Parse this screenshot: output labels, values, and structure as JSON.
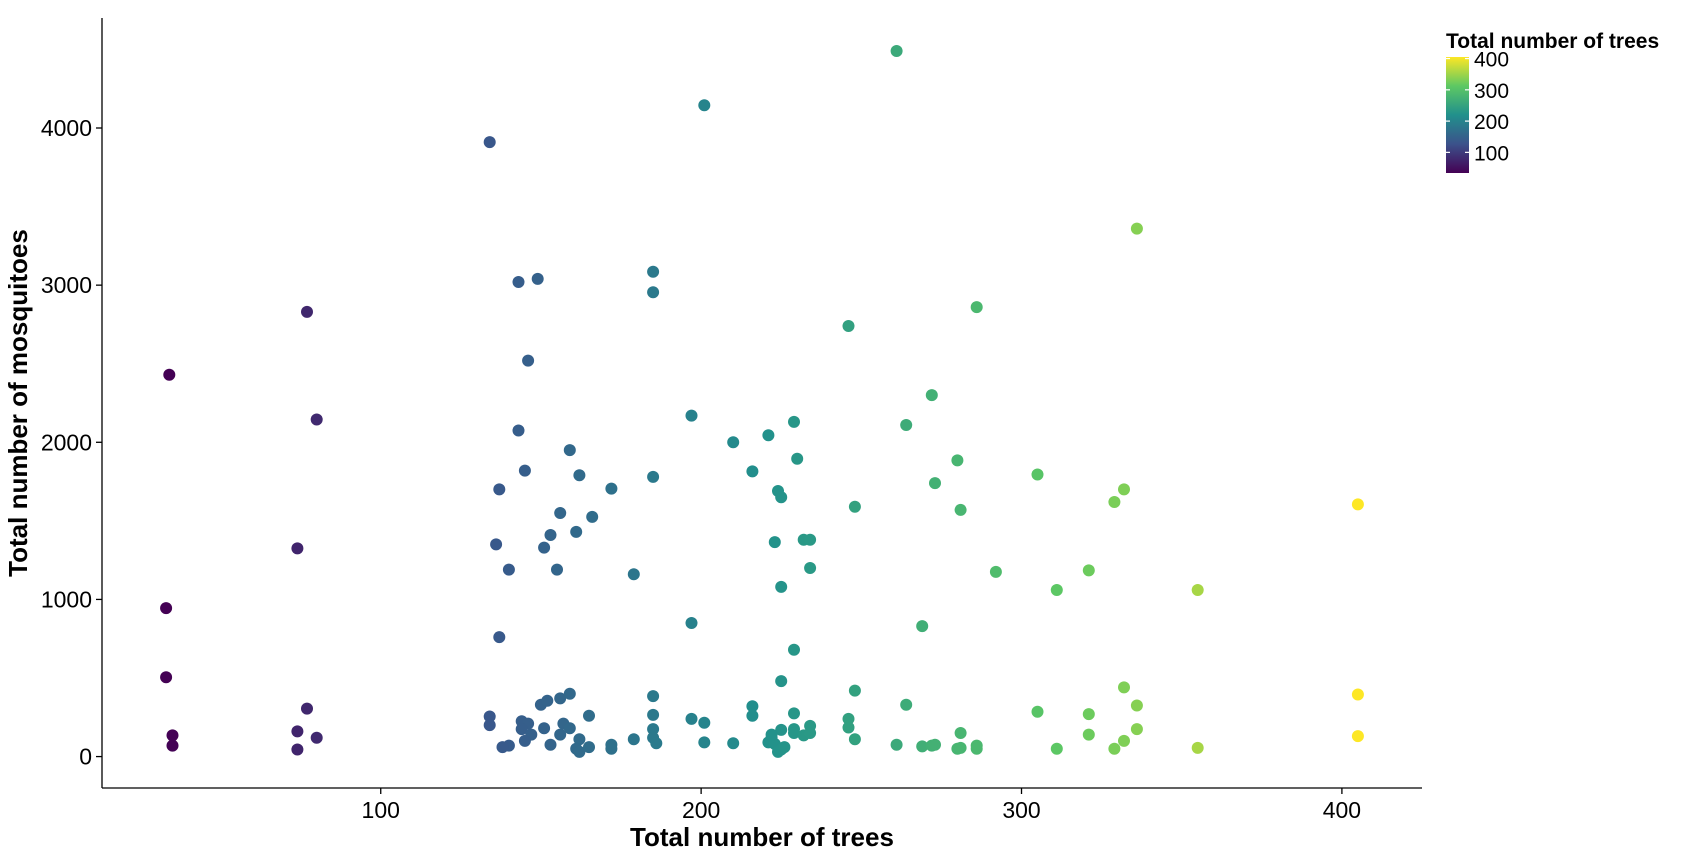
{
  "chart_data": {
    "type": "scatter",
    "title": "",
    "xlabel": "Total number of trees",
    "ylabel": "Total number of mosquitoes",
    "xlim": [
      13,
      425
    ],
    "ylim": [
      -200,
      4700
    ],
    "x_ticks": [
      "100",
      "200",
      "300",
      "400"
    ],
    "y_ticks": [
      "0",
      "1000",
      "2000",
      "3000",
      "4000"
    ],
    "grid": false,
    "legend": {
      "title": "Total number of trees",
      "type": "colorbar",
      "position": "top-right",
      "labels": [
        "400",
        "300",
        "200",
        "100"
      ],
      "range": [
        34,
        405
      ]
    },
    "color_scale": [
      "#440154",
      "#3B528B",
      "#21908C",
      "#5DC863",
      "#FDE725"
    ],
    "point_color": "color mapped to x (viridis)",
    "points": [
      {
        "x": 34,
        "y": 2430
      },
      {
        "x": 33,
        "y": 945
      },
      {
        "x": 33,
        "y": 505
      },
      {
        "x": 35,
        "y": 135
      },
      {
        "x": 35,
        "y": 70
      },
      {
        "x": 77,
        "y": 2830
      },
      {
        "x": 80,
        "y": 2145
      },
      {
        "x": 74,
        "y": 1325
      },
      {
        "x": 77,
        "y": 305
      },
      {
        "x": 74,
        "y": 160
      },
      {
        "x": 80,
        "y": 120
      },
      {
        "x": 74,
        "y": 45
      },
      {
        "x": 134,
        "y": 3910
      },
      {
        "x": 143,
        "y": 3020
      },
      {
        "x": 149,
        "y": 3040
      },
      {
        "x": 146,
        "y": 2520
      },
      {
        "x": 143,
        "y": 2075
      },
      {
        "x": 145,
        "y": 1820
      },
      {
        "x": 137,
        "y": 1700
      },
      {
        "x": 159,
        "y": 1950
      },
      {
        "x": 162,
        "y": 1790
      },
      {
        "x": 156,
        "y": 1550
      },
      {
        "x": 161,
        "y": 1430
      },
      {
        "x": 153,
        "y": 1410
      },
      {
        "x": 151,
        "y": 1330
      },
      {
        "x": 136,
        "y": 1350
      },
      {
        "x": 140,
        "y": 1190
      },
      {
        "x": 155,
        "y": 1190
      },
      {
        "x": 137,
        "y": 760
      },
      {
        "x": 134,
        "y": 255
      },
      {
        "x": 134,
        "y": 200
      },
      {
        "x": 144,
        "y": 225
      },
      {
        "x": 146,
        "y": 210
      },
      {
        "x": 144,
        "y": 175
      },
      {
        "x": 147,
        "y": 140
      },
      {
        "x": 145,
        "y": 100
      },
      {
        "x": 140,
        "y": 70
      },
      {
        "x": 138,
        "y": 60
      },
      {
        "x": 150,
        "y": 330
      },
      {
        "x": 152,
        "y": 355
      },
      {
        "x": 156,
        "y": 370
      },
      {
        "x": 159,
        "y": 400
      },
      {
        "x": 157,
        "y": 210
      },
      {
        "x": 159,
        "y": 180
      },
      {
        "x": 151,
        "y": 180
      },
      {
        "x": 156,
        "y": 140
      },
      {
        "x": 153,
        "y": 75
      },
      {
        "x": 162,
        "y": 110
      },
      {
        "x": 161,
        "y": 50
      },
      {
        "x": 162,
        "y": 30
      },
      {
        "x": 166,
        "y": 1525
      },
      {
        "x": 172,
        "y": 1705
      },
      {
        "x": 165,
        "y": 260
      },
      {
        "x": 165,
        "y": 60
      },
      {
        "x": 172,
        "y": 75
      },
      {
        "x": 172,
        "y": 50
      },
      {
        "x": 179,
        "y": 1160
      },
      {
        "x": 179,
        "y": 110
      },
      {
        "x": 185,
        "y": 3085
      },
      {
        "x": 185,
        "y": 2955
      },
      {
        "x": 185,
        "y": 1780
      },
      {
        "x": 185,
        "y": 385
      },
      {
        "x": 185,
        "y": 265
      },
      {
        "x": 185,
        "y": 175
      },
      {
        "x": 185,
        "y": 120
      },
      {
        "x": 186,
        "y": 85
      },
      {
        "x": 201,
        "y": 4145
      },
      {
        "x": 197,
        "y": 2170
      },
      {
        "x": 197,
        "y": 850
      },
      {
        "x": 197,
        "y": 240
      },
      {
        "x": 201,
        "y": 215
      },
      {
        "x": 201,
        "y": 90
      },
      {
        "x": 210,
        "y": 2000
      },
      {
        "x": 210,
        "y": 85
      },
      {
        "x": 216,
        "y": 1815
      },
      {
        "x": 216,
        "y": 320
      },
      {
        "x": 216,
        "y": 260
      },
      {
        "x": 221,
        "y": 2045
      },
      {
        "x": 224,
        "y": 1690
      },
      {
        "x": 225,
        "y": 1650
      },
      {
        "x": 223,
        "y": 1365
      },
      {
        "x": 225,
        "y": 1080
      },
      {
        "x": 225,
        "y": 480
      },
      {
        "x": 222,
        "y": 120
      },
      {
        "x": 221,
        "y": 90
      },
      {
        "x": 223,
        "y": 80
      },
      {
        "x": 225,
        "y": 170
      },
      {
        "x": 225,
        "y": 45
      },
      {
        "x": 224,
        "y": 30
      },
      {
        "x": 226,
        "y": 60
      },
      {
        "x": 222,
        "y": 140
      },
      {
        "x": 229,
        "y": 2130
      },
      {
        "x": 230,
        "y": 1895
      },
      {
        "x": 229,
        "y": 680
      },
      {
        "x": 229,
        "y": 275
      },
      {
        "x": 229,
        "y": 175
      },
      {
        "x": 229,
        "y": 150
      },
      {
        "x": 232,
        "y": 135
      },
      {
        "x": 232,
        "y": 1380
      },
      {
        "x": 234,
        "y": 1380
      },
      {
        "x": 234,
        "y": 1200
      },
      {
        "x": 234,
        "y": 195
      },
      {
        "x": 234,
        "y": 150
      },
      {
        "x": 246,
        "y": 2740
      },
      {
        "x": 248,
        "y": 1590
      },
      {
        "x": 248,
        "y": 420
      },
      {
        "x": 246,
        "y": 240
      },
      {
        "x": 246,
        "y": 185
      },
      {
        "x": 248,
        "y": 110
      },
      {
        "x": 261,
        "y": 4490
      },
      {
        "x": 261,
        "y": 75
      },
      {
        "x": 264,
        "y": 2110
      },
      {
        "x": 264,
        "y": 330
      },
      {
        "x": 272,
        "y": 2300
      },
      {
        "x": 273,
        "y": 1740
      },
      {
        "x": 269,
        "y": 830
      },
      {
        "x": 269,
        "y": 65
      },
      {
        "x": 272,
        "y": 70
      },
      {
        "x": 273,
        "y": 75
      },
      {
        "x": 280,
        "y": 1885
      },
      {
        "x": 281,
        "y": 1570
      },
      {
        "x": 281,
        "y": 150
      },
      {
        "x": 280,
        "y": 50
      },
      {
        "x": 281,
        "y": 55
      },
      {
        "x": 286,
        "y": 2860
      },
      {
        "x": 286,
        "y": 70
      },
      {
        "x": 286,
        "y": 50
      },
      {
        "x": 292,
        "y": 1175
      },
      {
        "x": 305,
        "y": 1795
      },
      {
        "x": 305,
        "y": 285
      },
      {
        "x": 311,
        "y": 1060
      },
      {
        "x": 311,
        "y": 50
      },
      {
        "x": 321,
        "y": 1185
      },
      {
        "x": 321,
        "y": 270
      },
      {
        "x": 321,
        "y": 140
      },
      {
        "x": 329,
        "y": 1620
      },
      {
        "x": 329,
        "y": 50
      },
      {
        "x": 332,
        "y": 1700
      },
      {
        "x": 332,
        "y": 440
      },
      {
        "x": 332,
        "y": 100
      },
      {
        "x": 336,
        "y": 3360
      },
      {
        "x": 336,
        "y": 325
      },
      {
        "x": 336,
        "y": 175
      },
      {
        "x": 355,
        "y": 1060
      },
      {
        "x": 355,
        "y": 55
      },
      {
        "x": 405,
        "y": 1605
      },
      {
        "x": 405,
        "y": 395
      },
      {
        "x": 405,
        "y": 130
      }
    ]
  }
}
